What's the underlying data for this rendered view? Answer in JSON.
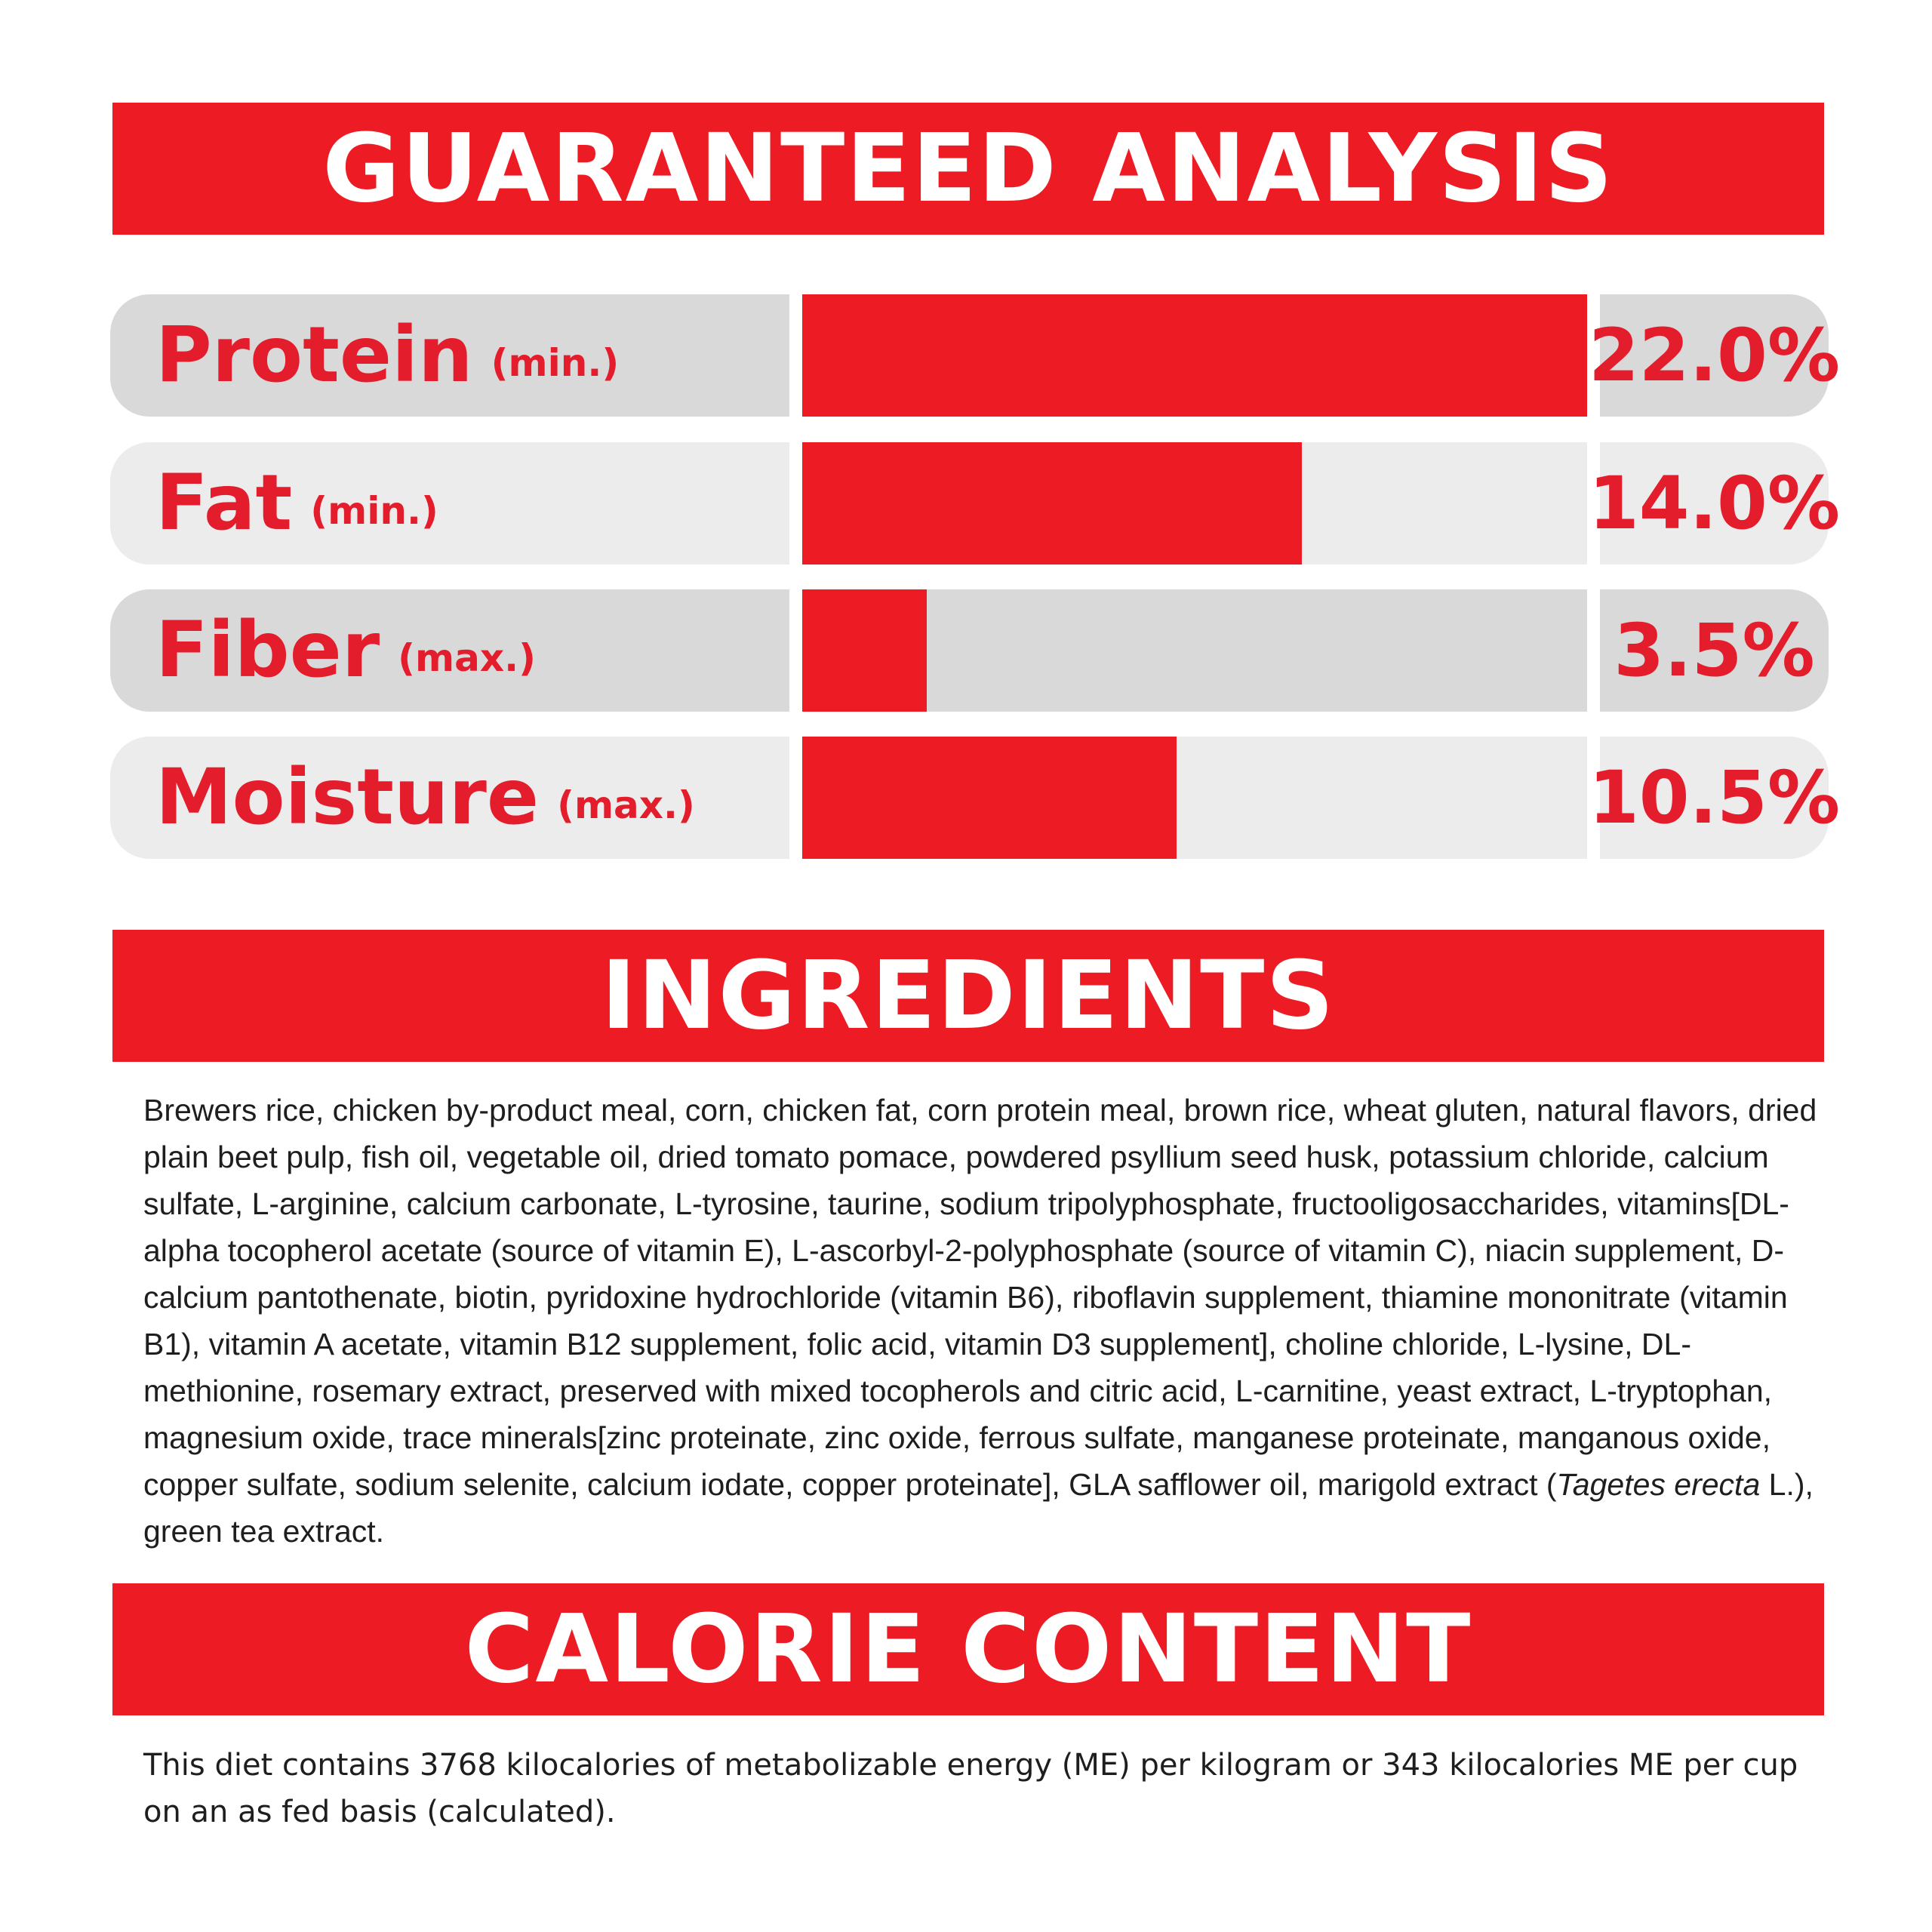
{
  "colors": {
    "accent_red": "#ed1c24",
    "label_red": "#e31d2b",
    "row_shade_dark": "#d9d9d9",
    "row_shade_light": "#ececec",
    "body_text": "#1e1e1e"
  },
  "guaranteed_analysis": {
    "title": "GUARANTEED ANALYSIS",
    "rows": [
      {
        "name": "Protein",
        "qualifier": "(min.)",
        "value": "22.0%",
        "amount": 22.0
      },
      {
        "name": "Fat",
        "qualifier": "(min.)",
        "value": "14.0%",
        "amount": 14.0
      },
      {
        "name": "Fiber",
        "qualifier": "(max.)",
        "value": "3.5%",
        "amount": 3.5
      },
      {
        "name": "Moisture",
        "qualifier": "(max.)",
        "value": "10.5%",
        "amount": 10.5
      }
    ],
    "bar_scale_max": 22.0
  },
  "ingredients": {
    "title": "INGREDIENTS",
    "text_before_italic": "Brewers rice, chicken by-product meal, corn, chicken fat, corn protein meal, brown rice, wheat gluten, natural flavors, dried plain beet pulp, fish oil, vegetable oil, dried tomato pomace, powdered psyllium seed husk, potassium chloride, calcium sulfate, L-arginine, calcium carbonate, L-tyrosine, taurine, sodium tripolyphosphate, fructooligosaccharides, vitamins[DL-alpha tocopherol acetate (source of vitamin E), L-ascorbyl-2-polyphosphate (source of vitamin C), niacin supplement, D-calcium pantothenate, biotin, pyridoxine hydrochloride (vitamin B6), riboflavin supplement, thiamine mononitrate (vitamin B1), vitamin A acetate, vitamin B12 supplement, folic acid, vitamin D3 supplement], choline chloride, L-lysine, DL-methionine, rosemary extract, preserved with mixed tocopherols and citric acid, L-carnitine, yeast extract, L-tryptophan, magnesium oxide, trace minerals[zinc proteinate, zinc oxide, ferrous sulfate, manganese proteinate, manganous oxide, copper sulfate, sodium selenite, calcium iodate, copper proteinate], GLA safflower oil, marigold extract (",
    "italic_text": "Tagetes erecta",
    "text_after_italic": " L.), green tea extract."
  },
  "calorie_content": {
    "title": "CALORIE CONTENT",
    "text": "This diet contains 3768 kilocalories of metabolizable energy (ME) per kilogram or 343 kilocalories ME per cup on an as fed basis (calculated)."
  }
}
